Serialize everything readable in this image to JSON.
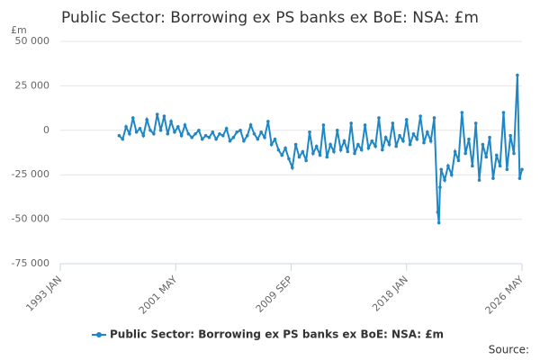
{
  "chart_data": {
    "type": "line",
    "title": "Public Sector: Borrowing ex PS banks ex BoE: NSA: £m",
    "y_unit": "£m",
    "source": "Source:",
    "x": [
      "1997 APR",
      "1997 JUL",
      "1997 OCT",
      "1998 JAN",
      "1998 APR",
      "1998 JUL",
      "1998 OCT",
      "1999 JAN",
      "1999 APR",
      "1999 JUL",
      "1999 OCT",
      "2000 JAN",
      "2000 APR",
      "2000 JUL",
      "2000 OCT",
      "2001 JAN",
      "2001 APR",
      "2001 JUL",
      "2001 OCT",
      "2002 JAN",
      "2002 APR",
      "2002 JUL",
      "2002 OCT",
      "2003 JAN",
      "2003 APR",
      "2003 JUL",
      "2003 OCT",
      "2004 JAN",
      "2004 APR",
      "2004 JUL",
      "2004 OCT",
      "2005 JAN",
      "2005 APR",
      "2005 JUL",
      "2005 OCT",
      "2006 JAN",
      "2006 APR",
      "2006 JUL",
      "2006 OCT",
      "2007 JAN",
      "2007 APR",
      "2007 JUL",
      "2007 OCT",
      "2008 JAN",
      "2008 APR",
      "2008 JUL",
      "2008 OCT",
      "2009 JAN",
      "2009 APR",
      "2009 JUL",
      "2009 OCT",
      "2010 JAN",
      "2010 APR",
      "2010 JUL",
      "2010 OCT",
      "2011 JAN",
      "2011 APR",
      "2011 JUL",
      "2011 OCT",
      "2012 JAN",
      "2012 APR",
      "2012 JUL",
      "2012 OCT",
      "2013 JAN",
      "2013 APR",
      "2013 JUL",
      "2013 OCT",
      "2014 JAN",
      "2014 APR",
      "2014 JUL",
      "2014 OCT",
      "2015 JAN",
      "2015 APR",
      "2015 JUL",
      "2015 OCT",
      "2016 JAN",
      "2016 APR",
      "2016 JUL",
      "2016 OCT",
      "2017 JAN",
      "2017 APR",
      "2017 JUL",
      "2017 OCT",
      "2018 JAN",
      "2018 APR",
      "2018 JUL",
      "2018 OCT",
      "2019 JAN",
      "2019 APR",
      "2019 JUL",
      "2019 OCT",
      "2020 JAN",
      "2020 APR",
      "2020 MAY",
      "2020 JUN",
      "2020 JUL",
      "2020 OCT",
      "2021 JAN",
      "2021 APR",
      "2021 JUL",
      "2021 OCT",
      "2022 JAN",
      "2022 APR",
      "2022 JUL",
      "2022 OCT",
      "2023 JAN",
      "2023 APR",
      "2023 JUL",
      "2023 OCT",
      "2024 JAN",
      "2024 APR",
      "2024 JUL",
      "2024 OCT",
      "2025 JAN",
      "2025 APR",
      "2025 JUL",
      "2025 OCT",
      "2026 JAN",
      "2026 MAR",
      "2026 MAY"
    ],
    "series": [
      {
        "name": "Public Sector: Borrowing ex PS banks ex BoE: NSA: £m",
        "color": "#1f87c4",
        "values": [
          -3000,
          -5000,
          2000,
          -2000,
          7000,
          -1000,
          1000,
          -3000,
          6000,
          0,
          -2000,
          9000,
          0,
          8000,
          -2000,
          5000,
          -1000,
          2000,
          -3000,
          3000,
          -2000,
          -4000,
          -2000,
          0,
          -5000,
          -3000,
          -4000,
          -1000,
          -5000,
          -2000,
          -3000,
          1000,
          -6000,
          -4000,
          -1000,
          0,
          -6000,
          -3000,
          3000,
          -2000,
          -5000,
          -1000,
          -4000,
          5000,
          -8000,
          -5000,
          -11000,
          -14000,
          -10000,
          -16000,
          -21000,
          -8000,
          -15000,
          -12000,
          -17000,
          -1000,
          -13000,
          -9000,
          -14000,
          3000,
          -15000,
          -8000,
          -12000,
          0,
          -11000,
          -6000,
          -12000,
          4000,
          -13000,
          -8000,
          -11000,
          3000,
          -10000,
          -6000,
          -9000,
          7000,
          -11000,
          -4000,
          -8000,
          4000,
          -9000,
          -3000,
          -6000,
          6000,
          -8000,
          -2000,
          -5000,
          8000,
          -7000,
          -1000,
          -6000,
          7000,
          -46000,
          -52000,
          -32000,
          -22000,
          -28000,
          -20000,
          -25000,
          -12000,
          -17000,
          10000,
          -13000,
          -5000,
          -20000,
          4000,
          -28000,
          -8000,
          -15000,
          -4000,
          -27000,
          -14000,
          -20000,
          10000,
          -22000,
          -3000,
          -13000,
          31000,
          -27000,
          -22000
        ]
      }
    ],
    "xlim": [
      "1993 JAN",
      "2026 MAY"
    ],
    "xticks": [
      "1993 JAN",
      "2001 MAY",
      "2009 SEP",
      "2018 JAN",
      "2026 MAY"
    ],
    "ylim": [
      -75000,
      50000
    ],
    "yticks": [
      {
        "value": -75000,
        "label": "-75 000"
      },
      {
        "value": -50000,
        "label": "-50 000"
      },
      {
        "value": -25000,
        "label": "-25 000"
      },
      0,
      {
        "value": 25000,
        "label": "25 000"
      },
      {
        "value": 50000,
        "label": "50 000"
      }
    ],
    "grid": true
  }
}
